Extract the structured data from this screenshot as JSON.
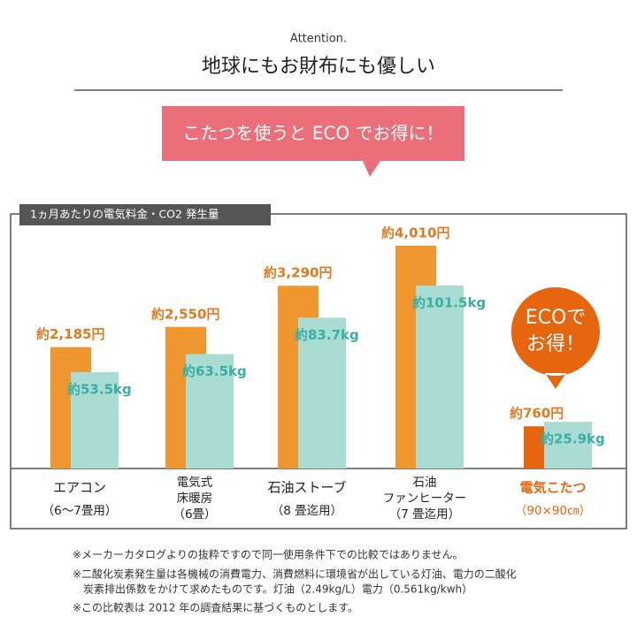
{
  "header": {
    "kicker": "Attention.",
    "title": "地球にもお財布にも優しい",
    "banner": "こたつを使うと ECO でお得に！"
  },
  "chart_data": {
    "type": "bar",
    "title": "1ヵ月あたりの電気料金・CO2 発生量",
    "categories": [
      [
        "エアコン",
        "（6〜7畳用）"
      ],
      [
        "電気式",
        "床暖房",
        "（6畳）"
      ],
      [
        "石油ストーブ",
        "（8 畳迄用）"
      ],
      [
        "石油",
        "ファンヒーター",
        "（7 畳迄用）"
      ],
      [
        "電気こたつ",
        "（90×90㎝）"
      ]
    ],
    "category_colors": [
      "#222222",
      "#222222",
      "#222222",
      "#222222",
      "#e8650f"
    ],
    "series": [
      {
        "name": "電気料金",
        "color": "#f0962f",
        "colors": [
          "#f0962f",
          "#f0962f",
          "#f0962f",
          "#f0962f",
          "#e8650f"
        ],
        "label_color": "#e07a1f",
        "values": [
          2185,
          2550,
          3290,
          4010,
          760
        ],
        "value_labels": [
          "約2,185円",
          "約2,550円",
          "約3,290円",
          "約4,010円",
          "約760円"
        ]
      },
      {
        "name": "CO2 発生量",
        "color": "#a9ddd4",
        "label_color": "#3aaea3",
        "values": [
          53.5,
          63.5,
          83.7,
          101.5,
          25.9
        ],
        "value_labels": [
          "約53.5kg",
          "約63.5kg",
          "約83.7kg",
          "約101.5kg",
          "約25.9kg"
        ]
      }
    ],
    "callout": [
      "ECOで",
      "お得！"
    ]
  },
  "notes": [
    "※メーカーカタログよりの抜粋ですので同一使用条件下での比較ではありません。",
    "※二酸化炭素発生量は各機械の消費電力、消費燃料に環境省が出している灯油、電力の二酸化",
    "炭素排出係数をかけて求めたものです。灯油（2.49kg/L）電力（0.561kg/kwh）",
    "※この比較表は 2012 年の調査結果に基づくものとします。"
  ]
}
